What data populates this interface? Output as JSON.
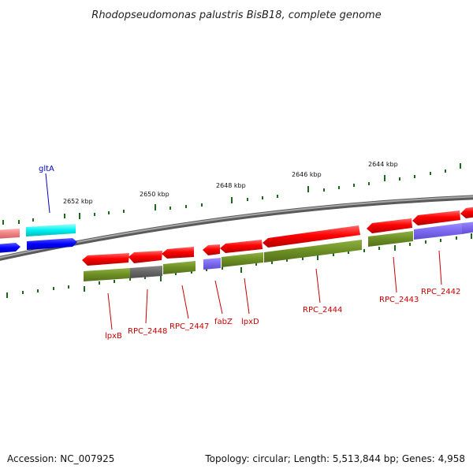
{
  "title": "Rhodopseudomonas palustris BisB18, complete genome",
  "footer": {
    "accession": "Accession: NC_007925",
    "summary": "Topology: circular; Length: 5,513,844 bp; Genes: 4,958"
  },
  "colors": {
    "background": "#ffffff",
    "backbone": "#808080",
    "tick": "#1a6b1a",
    "gene_red": "#ff0000",
    "gene_label_red": "#cc0000",
    "gene_label_blue": "#0000cc",
    "cds_olive": "#6b8e23",
    "cds_gray": "#6e6e6e",
    "cds_slate": "#7b68ee",
    "trna_cyan": "#00ffff",
    "trna_blue": "#0000ff",
    "pink": "#f08080"
  },
  "ticks": [
    {
      "label": "2652 kbp"
    },
    {
      "label": "2650 kbp"
    },
    {
      "label": "2648 kbp"
    },
    {
      "label": "2646 kbp"
    },
    {
      "label": "2644 kbp"
    }
  ],
  "gene_labels": [
    {
      "name": "gltA",
      "color": "gene_label_blue"
    },
    {
      "name": "lpxB",
      "color": "gene_label_red"
    },
    {
      "name": "RPC_2448",
      "color": "gene_label_red"
    },
    {
      "name": "RPC_2447",
      "color": "gene_label_red"
    },
    {
      "name": "fabZ",
      "color": "gene_label_red"
    },
    {
      "name": "lpxD",
      "color": "gene_label_red"
    },
    {
      "name": "RPC_2444",
      "color": "gene_label_red"
    },
    {
      "name": "RPC_2443",
      "color": "gene_label_red"
    },
    {
      "name": "RPC_2442",
      "color": "gene_label_red"
    }
  ]
}
